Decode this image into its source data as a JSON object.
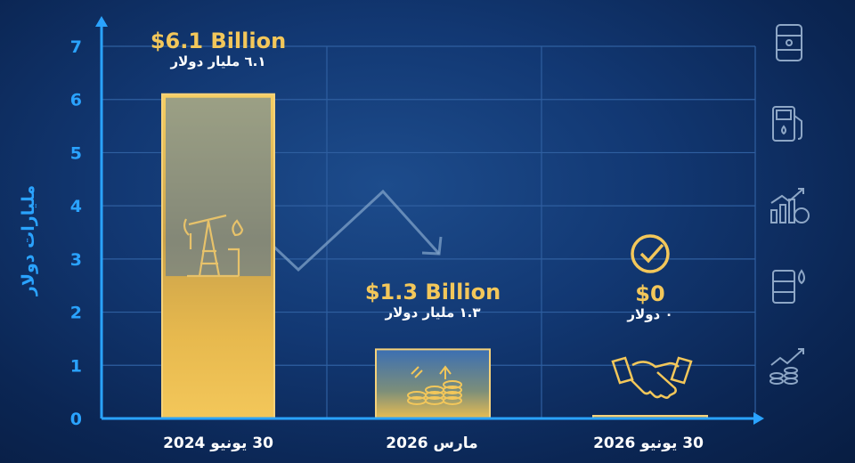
{
  "chart_data": {
    "type": "bar",
    "categories": [
      "30 يونيو 2024",
      "مارس 2026",
      "30 يونيو 2026"
    ],
    "values": [
      6.1,
      1.3,
      0
    ],
    "ylabel": "مليارات دولار",
    "ylim": [
      0,
      7
    ],
    "yticks": [
      "0",
      "1",
      "2",
      "3",
      "4",
      "5",
      "6",
      "7"
    ],
    "annotations": [
      {
        "value_label": "$6.1 Billion",
        "arabic_label": "٦.١ مليار دولار"
      },
      {
        "value_label": "$1.3 Billion",
        "arabic_label": "١.٣ مليار دولار"
      },
      {
        "value_label": "$0",
        "arabic_label": "٠ دولار"
      }
    ],
    "grid": true,
    "trend": "downward arrow"
  },
  "colors": {
    "axis": "#2aa3ff",
    "bar_gold": "#f3c75a",
    "grid": "#2f5fa0",
    "text": "#ffffff"
  },
  "icons": {
    "bar1": "oil-pumpjack-icon",
    "bar2": "coin-stack-growth-icon",
    "bar3_top": "check-circle-icon",
    "bar3": "handshake-icon",
    "sidebar": [
      "oil-barrel-icon",
      "fuel-pump-icon",
      "growth-chart-icon",
      "oil-drop-barrel-icon",
      "money-growth-icon"
    ]
  }
}
